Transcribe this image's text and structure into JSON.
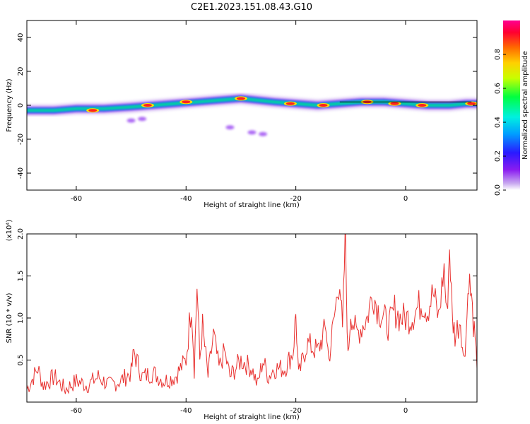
{
  "title": "C2E1.2023.151.08.43.G10",
  "colors": {
    "line": "#e8312f",
    "ridge": "#000000"
  },
  "chart_data": [
    {
      "type": "heatmap",
      "xlabel": "Height of straight line (km)",
      "ylabel": "Frequency (Hz)",
      "xlim": [
        -69,
        13
      ],
      "ylim": [
        -50,
        50
      ],
      "xticks": [
        -60,
        -40,
        -20,
        0
      ],
      "yticks": [
        -40,
        -20,
        0,
        20,
        40
      ],
      "colorbar": {
        "label": "Normalized spectral amplitude",
        "ticks": [
          "0.0",
          "0.2",
          "0.4",
          "0.6",
          "0.8"
        ],
        "range": [
          0,
          1
        ]
      },
      "ridge": [
        [
          -69,
          -3
        ],
        [
          -64,
          -3
        ],
        [
          -60,
          -2
        ],
        [
          -55,
          -2
        ],
        [
          -50,
          -1
        ],
        [
          -46,
          0
        ],
        [
          -42,
          1
        ],
        [
          -38,
          2
        ],
        [
          -34,
          3
        ],
        [
          -30,
          4
        ],
        [
          -27,
          3
        ],
        [
          -24,
          2
        ],
        [
          -20,
          1
        ],
        [
          -16,
          0
        ],
        [
          -12,
          1
        ],
        [
          -8,
          2
        ],
        [
          -4,
          2
        ],
        [
          0,
          1
        ],
        [
          4,
          0
        ],
        [
          8,
          0
        ],
        [
          11,
          1
        ],
        [
          13,
          1
        ]
      ],
      "bright_spots": [
        [
          -57,
          -3
        ],
        [
          -47,
          0
        ],
        [
          -40,
          2
        ],
        [
          -30,
          4
        ],
        [
          -21,
          1
        ],
        [
          -15,
          0
        ],
        [
          -7,
          2
        ],
        [
          -2,
          1
        ],
        [
          3,
          0
        ],
        [
          12,
          1
        ]
      ],
      "isolated_blobs": [
        [
          -32,
          -13
        ],
        [
          -28,
          -16
        ],
        [
          -26,
          -17
        ],
        [
          -50,
          -9
        ],
        [
          -48,
          -8
        ]
      ],
      "grid": false
    },
    {
      "type": "line",
      "xlabel": "Height of straight line (km)",
      "ylabel": "SNR (10 * v/v)",
      "y_multiplier": "(x10⁴)",
      "xlim": [
        -69,
        13
      ],
      "ylim": [
        0,
        2.0
      ],
      "xticks": [
        -60,
        -40,
        -20,
        0
      ],
      "yticks": [
        "0.5",
        "1.0",
        "1.5",
        "2.0"
      ],
      "grid": false,
      "series": [
        {
          "x": [
            -69,
            -67,
            -66,
            -64,
            -62,
            -60,
            -58,
            -56,
            -54,
            -52,
            -50,
            -49.5,
            -48,
            -46,
            -44,
            -42,
            -40,
            -39,
            -38.5,
            -38,
            -37.5,
            -37,
            -36,
            -35,
            -34,
            -33,
            -32,
            -30,
            -28,
            -27,
            -26,
            -25,
            -24,
            -22,
            -20.5,
            -20,
            -19.5,
            -18,
            -16,
            -14.5,
            -14,
            -13,
            -12,
            -11.5,
            -11,
            -10.5,
            -10,
            -9,
            -8,
            -7,
            -6,
            -5,
            -4,
            -3,
            -2,
            -1,
            0,
            1,
            2,
            3,
            4,
            5,
            6,
            7,
            7.5,
            8,
            8.5,
            9,
            10,
            10.5,
            11,
            11.5,
            12,
            12.5,
            13
          ],
          "y": [
            0.15,
            0.4,
            0.2,
            0.3,
            0.15,
            0.25,
            0.2,
            0.3,
            0.2,
            0.25,
            0.35,
            0.6,
            0.3,
            0.35,
            0.25,
            0.3,
            0.5,
            1.2,
            0.4,
            1.4,
            0.5,
            0.9,
            0.3,
            0.8,
            0.4,
            0.6,
            0.3,
            0.5,
            0.4,
            0.2,
            0.5,
            0.3,
            0.4,
            0.4,
            0.6,
            1.05,
            0.3,
            0.7,
            0.6,
            0.9,
            0.5,
            1.0,
            1.5,
            0.8,
            2.0,
            0.5,
            1.1,
            0.8,
            0.9,
            1.0,
            1.3,
            1.1,
            1.0,
            0.9,
            1.1,
            1.0,
            1.0,
            1.0,
            1.1,
            1.2,
            1.1,
            1.3,
            1.0,
            1.6,
            1.0,
            1.85,
            1.0,
            0.8,
            1.0,
            0.5,
            0.8,
            1.5,
            1.2,
            0.8,
            0.4
          ]
        }
      ]
    }
  ]
}
